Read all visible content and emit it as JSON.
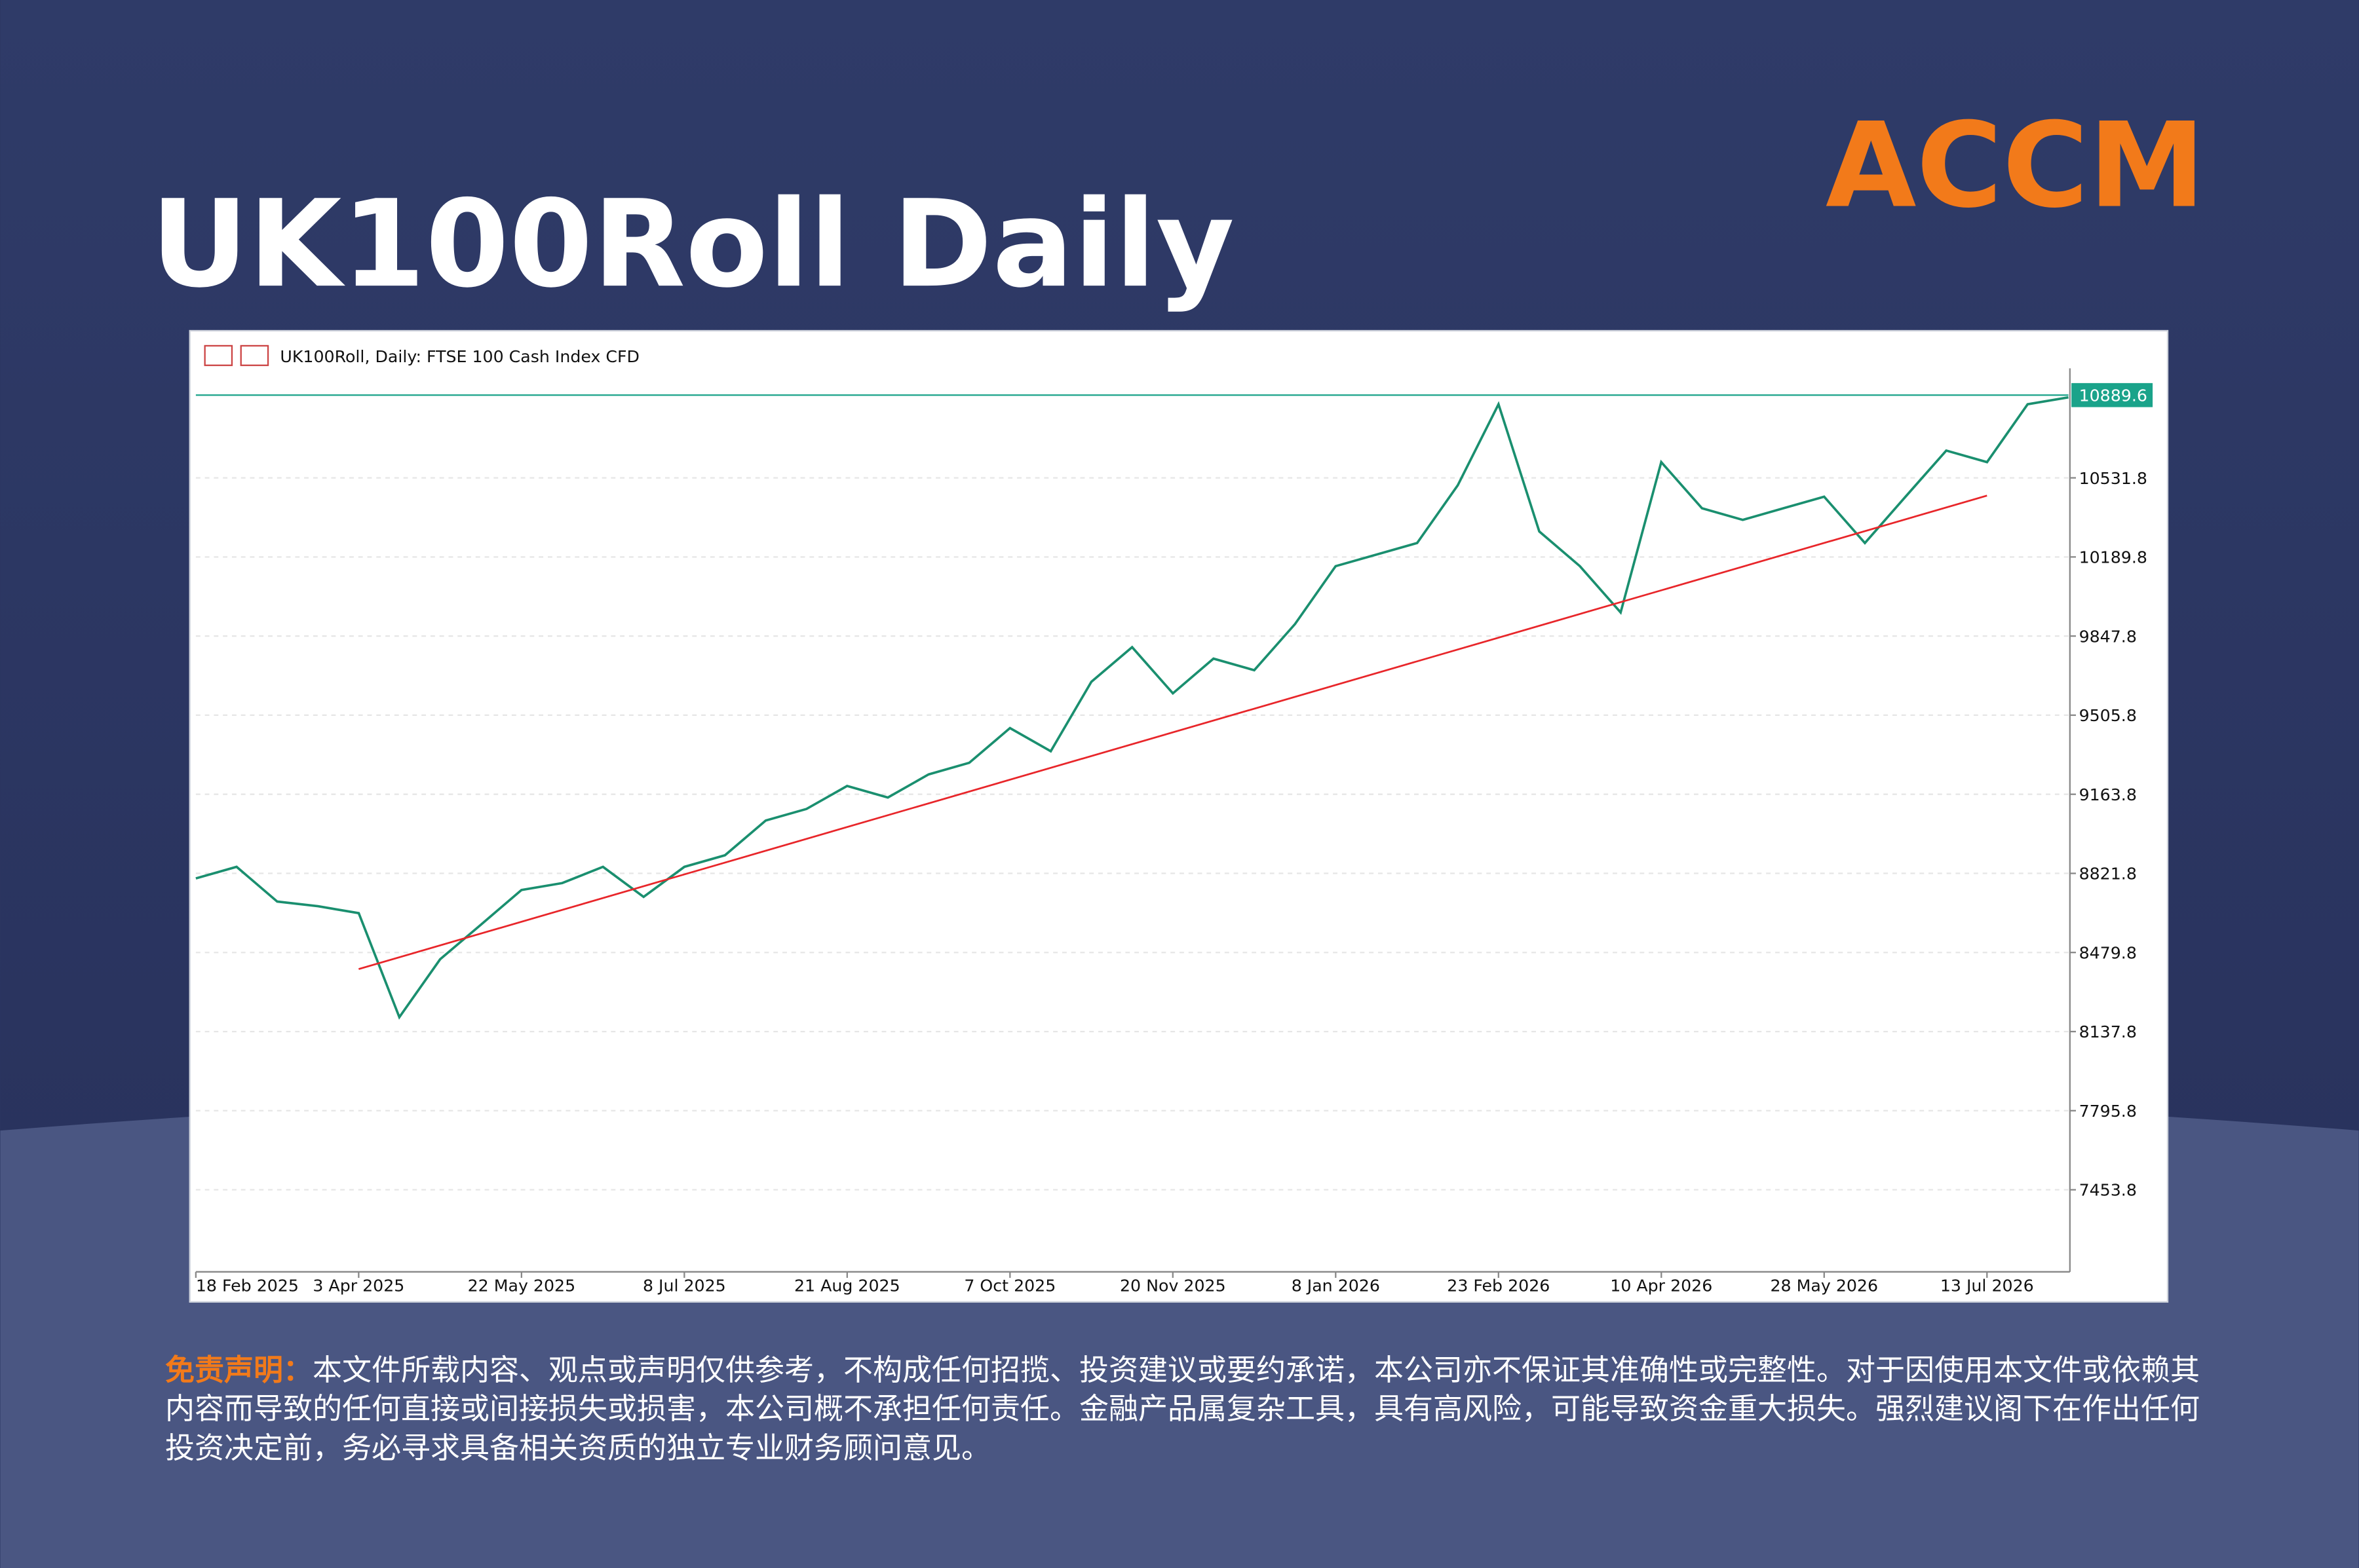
{
  "header": {
    "title": "UK100Roll Daily",
    "logo": "ACCM"
  },
  "chart_data": {
    "type": "line",
    "legend": "UK100Roll, Daily:  FTSE 100 Cash Index CFD",
    "categories": [
      "18 Feb 2025",
      null,
      null,
      null,
      "3 Apr 2025",
      null,
      null,
      null,
      "22 May 2025",
      null,
      null,
      null,
      "8 Jul 2025",
      null,
      null,
      null,
      "21 Aug 2025",
      null,
      null,
      null,
      "7 Oct 2025",
      null,
      null,
      null,
      "20 Nov 2025",
      null,
      null,
      null,
      "8 Jan 2026",
      null,
      null,
      null,
      "23 Feb 2026",
      null,
      null,
      null,
      "10 Apr 2026",
      null,
      null,
      null,
      "28 May 2026",
      null,
      null,
      null,
      "13 Jul 2026",
      null,
      null
    ],
    "values": [
      8800,
      8850,
      8700,
      8680,
      8650,
      8200,
      8450,
      8600,
      8750,
      8780,
      8850,
      8720,
      8850,
      8900,
      9050,
      9100,
      9200,
      9150,
      9250,
      9300,
      9450,
      9350,
      9650,
      9800,
      9600,
      9750,
      9700,
      9900,
      10150,
      10200,
      10250,
      10500,
      10850,
      10300,
      10150,
      9950,
      10600,
      10400,
      10350,
      10400,
      10450,
      10250,
      10450,
      10650,
      10600,
      10850,
      10880
    ],
    "color": "#1a8f6f",
    "trendline": {
      "values": [
        8408,
        10455
      ],
      "color": "#e8262a"
    },
    "last_price": 10889.6,
    "last_price_color": "#1aa38a",
    "ylim": [
      7105.5,
      11005.4
    ],
    "yticks": [
      7453.8,
      7795.8,
      8137.8,
      8479.8,
      8821.8,
      9163.8,
      9505.8,
      9847.8,
      10189.8,
      10531.8
    ],
    "grid": true
  },
  "disclaimer": {
    "label": "免责声明：",
    "text": "本文件所载内容、观点或声明仅供参考，不构成任何招揽、投资建议或要约承诺，本公司亦不保证其准确性或完整性。对于因使用本文件或依赖其内容而导致的任何直接或间接损失或损害，本公司概不承担任何责任。金融产品属复杂工具，具有高风险，可能导致资金重大损失。强烈建议阁下在作出任何投资决定前，务必寻求具备相关资质的独立专业财务顾问意见。"
  }
}
